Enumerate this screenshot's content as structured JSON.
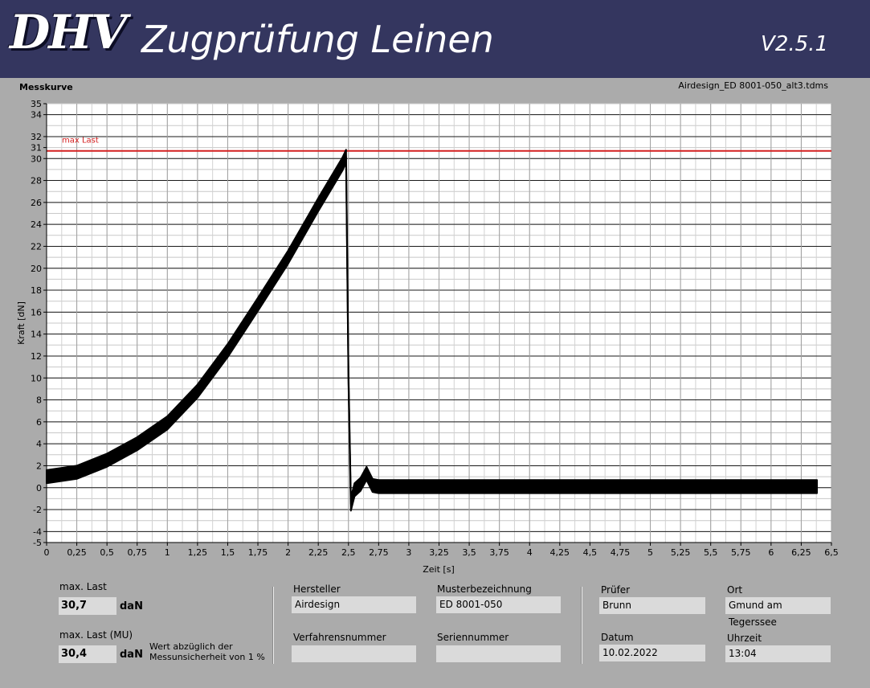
{
  "header": {
    "logo_text": "DHV",
    "title": "Zugprüfung Leinen",
    "version": "V2.5.1"
  },
  "chart_caption": "Messkurve",
  "file_name": "Airdesign_ED 8001-050_alt3.tdms",
  "chart_data": {
    "type": "line",
    "xlabel": "Zeit [s]",
    "ylabel": "Kraft [dN]",
    "xlim": [
      0,
      6.5
    ],
    "ylim": [
      -5,
      35
    ],
    "x_ticks": [
      "0",
      "0,25",
      "0,5",
      "0,75",
      "1",
      "1,25",
      "1,5",
      "1,75",
      "2",
      "2,25",
      "2,5",
      "2,75",
      "3",
      "3,25",
      "3,5",
      "3,75",
      "4",
      "4,25",
      "4,5",
      "4,75",
      "5",
      "5,25",
      "5,5",
      "5,75",
      "6",
      "6,25",
      "6,5"
    ],
    "y_ticks": [
      "-5",
      "-4",
      "-2",
      "0",
      "2",
      "4",
      "6",
      "8",
      "10",
      "12",
      "14",
      "16",
      "18",
      "20",
      "22",
      "24",
      "26",
      "28",
      "30",
      "31",
      "32",
      "34",
      "35"
    ],
    "grid": true,
    "reference_line": {
      "label": "max Last",
      "y": 30.7,
      "color": "#d42020"
    },
    "series": [
      {
        "color": "#000000",
        "x": [
          0,
          0.25,
          0.5,
          0.75,
          1.0,
          1.25,
          1.5,
          1.75,
          2.0,
          2.25,
          2.45,
          2.48,
          2.5,
          2.52,
          2.55,
          2.6,
          2.65,
          2.7,
          2.75,
          3.0,
          3.5,
          4.0,
          4.5,
          5.0,
          5.5,
          6.0,
          6.38
        ],
        "y": [
          1.0,
          1.4,
          2.5,
          4.0,
          5.9,
          8.8,
          12.5,
          16.7,
          21.0,
          25.8,
          29.5,
          30.2,
          10.0,
          -1.5,
          -0.2,
          0.3,
          1.3,
          0.2,
          0.1,
          0.1,
          0.1,
          0.1,
          0.1,
          0.1,
          0.1,
          0.1,
          0.1
        ],
        "band": 0.6
      }
    ]
  },
  "info": {
    "max_last_label": "max. Last",
    "max_last_value": "30,7",
    "max_last_unit": "daN",
    "max_last_mu_label": "max. Last (MU)",
    "max_last_mu_value": "30,4",
    "max_last_mu_unit": "daN",
    "mu_note_1": "Wert abzüglich der",
    "mu_note_2": "Messunsicherheit von 1 %",
    "hersteller_label": "Hersteller",
    "hersteller_value": "Airdesign",
    "muster_label": "Musterbezeichnung",
    "muster_value": "ED 8001-050",
    "verfahren_label": "Verfahrensnummer",
    "verfahren_value": "",
    "serien_label": "Seriennummer",
    "serien_value": "",
    "pruefer_label": "Prüfer",
    "pruefer_value": "Brunn",
    "ort_label": "Ort",
    "ort_value": "Gmund am Tegerssee",
    "datum_label": "Datum",
    "datum_value": "10.02.2022",
    "uhrzeit_label": "Uhrzeit",
    "uhrzeit_value": "13:04"
  }
}
